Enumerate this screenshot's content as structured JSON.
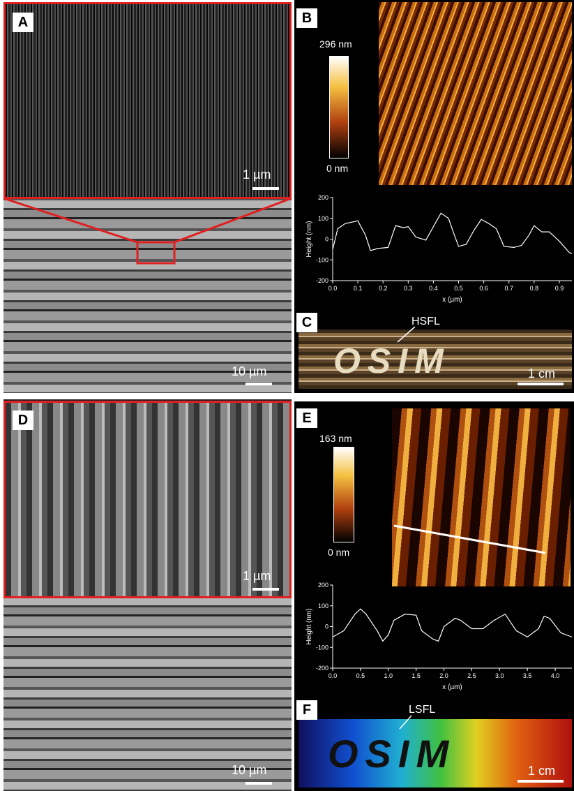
{
  "panels": {
    "a": {
      "label": "A",
      "scale_inset": "1 µm",
      "scale_main": "10 µm"
    },
    "b": {
      "label": "B",
      "colorbar_max": "296 nm",
      "colorbar_min": "0 nm"
    },
    "c": {
      "label": "C",
      "annotation": "HSFL",
      "text": "OSIM",
      "scale": "1 cm"
    },
    "d": {
      "label": "D",
      "scale_inset": "1 µm",
      "scale_main": "10 µm"
    },
    "e": {
      "label": "E",
      "colorbar_max": "163 nm",
      "colorbar_min": "0 nm"
    },
    "f": {
      "label": "F",
      "annotation": "LSFL",
      "text": "OSIM",
      "scale": "1 cm"
    }
  },
  "chart_data": [
    {
      "type": "line",
      "xlabel": "x (µm)",
      "ylabel": "Height (nm)",
      "color": "#ffffff",
      "x": [
        0,
        0.02,
        0.05,
        0.1,
        0.13,
        0.15,
        0.18,
        0.22,
        0.25,
        0.28,
        0.3,
        0.33,
        0.37,
        0.4,
        0.43,
        0.46,
        0.48,
        0.5,
        0.53,
        0.56,
        0.59,
        0.62,
        0.65,
        0.68,
        0.72,
        0.75,
        0.78,
        0.8,
        0.83,
        0.86,
        0.9,
        0.94,
        0.95
      ],
      "values": [
        -50,
        50,
        75,
        88,
        20,
        -55,
        -45,
        -40,
        65,
        55,
        60,
        10,
        -5,
        60,
        125,
        100,
        30,
        -35,
        -25,
        40,
        95,
        75,
        50,
        -35,
        -40,
        -30,
        20,
        65,
        35,
        35,
        -10,
        -65,
        -70
      ],
      "xlim": [
        0,
        0.95
      ],
      "ylim": [
        -200,
        200
      ],
      "xticks": [
        {
          "value": 0,
          "label": "0.0"
        },
        0.1,
        0.2,
        0.3,
        0.4,
        0.5,
        0.6,
        0.7,
        0.8,
        0.9
      ],
      "yticks": [
        -200,
        -100,
        0,
        100,
        200
      ]
    },
    {
      "type": "line",
      "xlabel": "x (µm)",
      "ylabel": "Height (nm)",
      "color": "#ffffff",
      "x": [
        0,
        0.2,
        0.4,
        0.5,
        0.6,
        0.8,
        0.9,
        1.0,
        1.1,
        1.3,
        1.5,
        1.6,
        1.8,
        1.9,
        2.0,
        2.2,
        2.3,
        2.5,
        2.7,
        2.9,
        3.1,
        3.3,
        3.5,
        3.7,
        3.8,
        3.9,
        4.1,
        4.3
      ],
      "values": [
        -50,
        -20,
        60,
        85,
        60,
        -20,
        -70,
        -40,
        30,
        60,
        55,
        -20,
        -60,
        -70,
        0,
        40,
        30,
        -10,
        -10,
        30,
        60,
        -20,
        -50,
        -10,
        50,
        40,
        -30,
        -50
      ],
      "xlim": [
        0,
        4.3
      ],
      "ylim": [
        -200,
        200
      ],
      "xticks": [
        {
          "value": 0,
          "label": "0.0"
        },
        0.5,
        {
          "value": 1,
          "label": "1.0"
        },
        1.5,
        {
          "value": 2,
          "label": "2.0"
        },
        2.5,
        {
          "value": 3,
          "label": "3.0"
        },
        3.5,
        {
          "value": 4,
          "label": "4.0"
        }
      ],
      "yticks": [
        -200,
        -100,
        0,
        100,
        200
      ]
    }
  ]
}
